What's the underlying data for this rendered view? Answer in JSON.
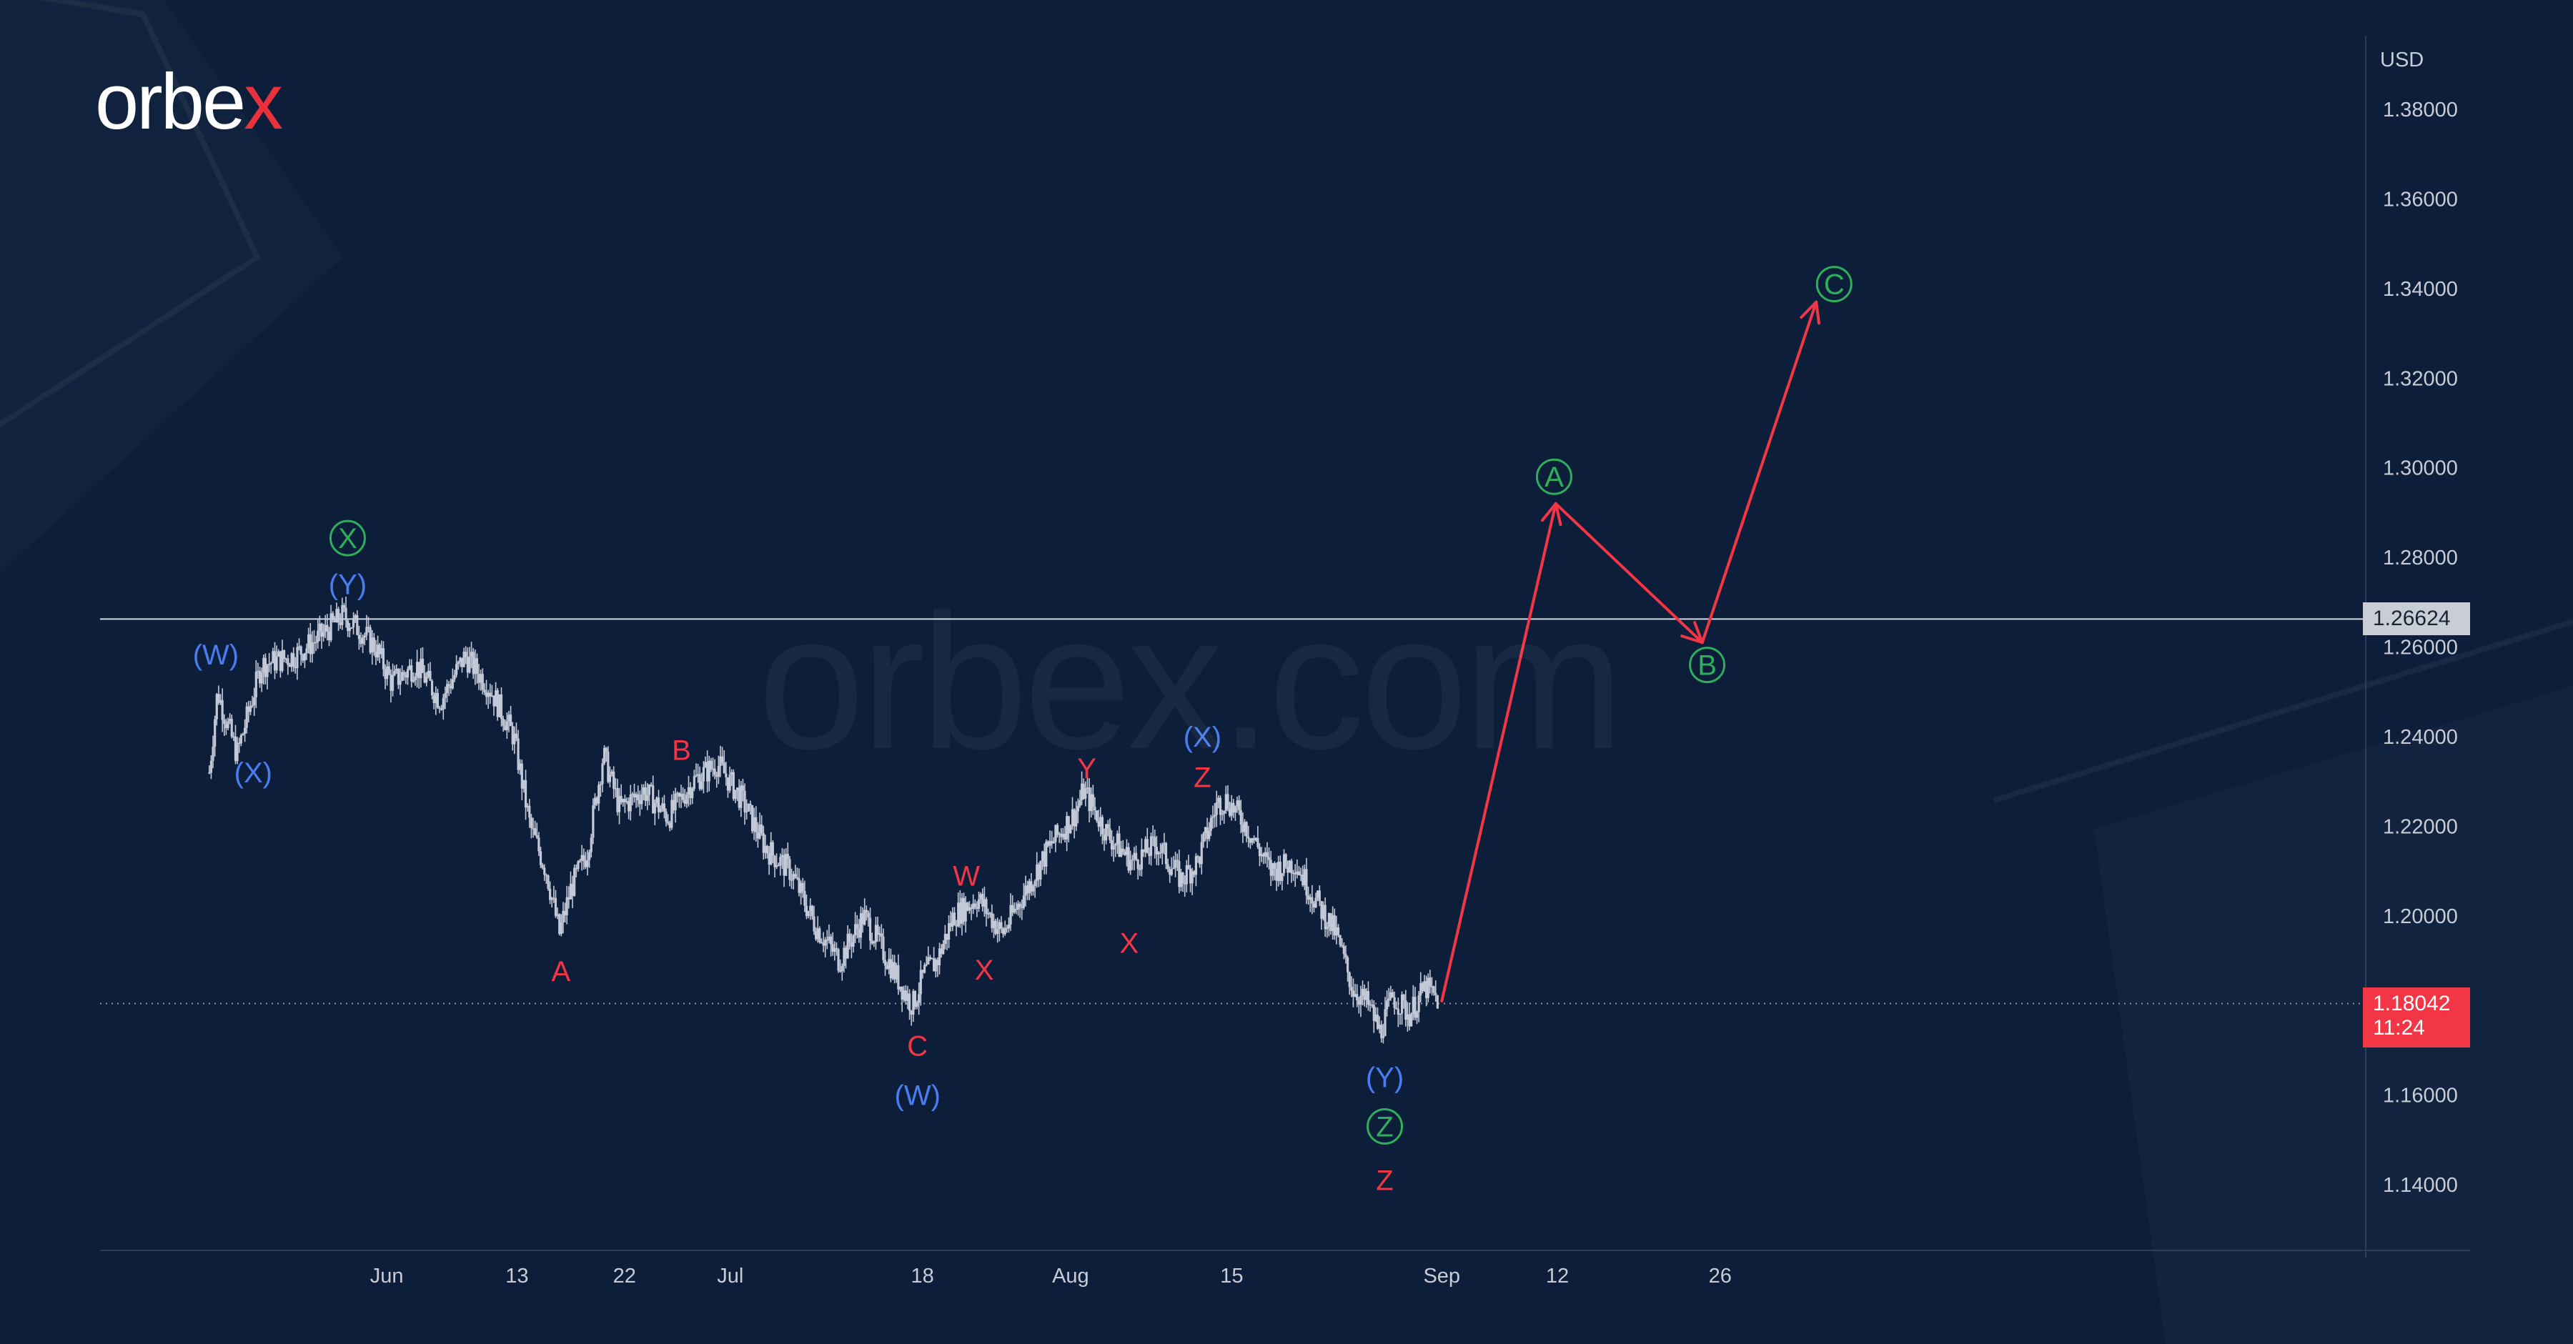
{
  "brand": {
    "logo_text_main": "orbe",
    "logo_text_accent": "x",
    "watermark": "orbex.com"
  },
  "colors": {
    "background": "#0c1e3a",
    "candle": "#c3c9d6",
    "forecast_arrow": "#f23645",
    "wave_blue": "#4a7cf0",
    "wave_red": "#f23645",
    "wave_green": "#2fae5b",
    "axis_text": "#c7ccd6",
    "level_line": "#d6d9df",
    "last_price_bg": "#f23645"
  },
  "chart_data": {
    "type": "line",
    "title": "",
    "currency_label": "USD",
    "ylim": [
      1.126,
      1.392
    ],
    "y_ticks": [
      "1.38000",
      "1.36000",
      "1.34000",
      "1.32000",
      "1.30000",
      "1.28000",
      "1.26000",
      "1.24000",
      "1.22000",
      "1.20000",
      "1.18000",
      "1.16000",
      "1.14000"
    ],
    "x_ticks": [
      {
        "label": "Jun",
        "t": 2.2
      },
      {
        "label": "13",
        "t": 10.2
      },
      {
        "label": "22",
        "t": 16.8
      },
      {
        "label": "Jul",
        "t": 23.3
      },
      {
        "label": "18",
        "t": 35.1
      },
      {
        "label": "Aug",
        "t": 44.2
      },
      {
        "label": "15",
        "t": 54.1
      },
      {
        "label": "Sep",
        "t": 67.0
      },
      {
        "label": "12",
        "t": 74.1
      },
      {
        "label": "26",
        "t": 84.1
      }
    ],
    "price_path": [
      [
        -8.7,
        1.232
      ],
      [
        -8.2,
        1.25
      ],
      [
        -7.0,
        1.236
      ],
      [
        -5.5,
        1.256
      ],
      [
        -3.5,
        1.258
      ],
      [
        -2.0,
        1.262
      ],
      [
        -0.5,
        1.267
      ],
      [
        0.5,
        1.264
      ],
      [
        1.5,
        1.26
      ],
      [
        2.5,
        1.252
      ],
      [
        4.0,
        1.256
      ],
      [
        5.5,
        1.248
      ],
      [
        7.0,
        1.258
      ],
      [
        8.5,
        1.251
      ],
      [
        10.0,
        1.24
      ],
      [
        11.0,
        1.22
      ],
      [
        12.0,
        1.21
      ],
      [
        12.8,
        1.196
      ],
      [
        13.5,
        1.206
      ],
      [
        14.5,
        1.214
      ],
      [
        15.5,
        1.236
      ],
      [
        16.5,
        1.224
      ],
      [
        18.0,
        1.228
      ],
      [
        19.5,
        1.222
      ],
      [
        21.0,
        1.23
      ],
      [
        22.5,
        1.234
      ],
      [
        24.0,
        1.226
      ],
      [
        25.5,
        1.215
      ],
      [
        27.0,
        1.21
      ],
      [
        28.5,
        1.198
      ],
      [
        30.0,
        1.19
      ],
      [
        31.5,
        1.2
      ],
      [
        33.0,
        1.19
      ],
      [
        34.0,
        1.183
      ],
      [
        34.5,
        1.18
      ],
      [
        35.2,
        1.187
      ],
      [
        36.0,
        1.19
      ],
      [
        37.0,
        1.2
      ],
      [
        38.5,
        1.204
      ],
      [
        40.0,
        1.196
      ],
      [
        41.5,
        1.206
      ],
      [
        43.0,
        1.216
      ],
      [
        44.5,
        1.223
      ],
      [
        45.0,
        1.228
      ],
      [
        46.5,
        1.218
      ],
      [
        48.0,
        1.212
      ],
      [
        49.5,
        1.216
      ],
      [
        51.0,
        1.208
      ],
      [
        52.0,
        1.212
      ],
      [
        53.2,
        1.225
      ],
      [
        53.8,
        1.226
      ],
      [
        55.0,
        1.22
      ],
      [
        56.5,
        1.21
      ],
      [
        58.0,
        1.212
      ],
      [
        59.0,
        1.205
      ],
      [
        60.5,
        1.196
      ],
      [
        61.5,
        1.184
      ],
      [
        62.5,
        1.18
      ],
      [
        63.2,
        1.174
      ],
      [
        64.0,
        1.182
      ],
      [
        65.0,
        1.178
      ],
      [
        66.0,
        1.184
      ],
      [
        66.8,
        1.181
      ]
    ],
    "forecast_path": [
      [
        67.0,
        1.181
      ],
      [
        74.0,
        1.292
      ],
      [
        83.0,
        1.261
      ],
      [
        90.0,
        1.337
      ]
    ],
    "horizontal_level": 1.26624,
    "horizontal_level_label": "1.26624",
    "last_price": 1.18042,
    "last_price_label": "1.18042",
    "countdown": "11:24",
    "wave_labels": [
      {
        "text": "(W)",
        "t": -8.3,
        "y": 1.2583,
        "color": "blue",
        "circled": false
      },
      {
        "text": "(X)",
        "t": -6.0,
        "y": 1.232,
        "color": "blue",
        "circled": false
      },
      {
        "text": "(Y)",
        "t": -0.2,
        "y": 1.274,
        "color": "blue",
        "circled": false
      },
      {
        "text": "X",
        "t": -0.2,
        "y": 1.2843,
        "color": "green",
        "circled": true
      },
      {
        "text": "A",
        "t": 12.9,
        "y": 1.1877,
        "color": "red",
        "circled": false
      },
      {
        "text": "B",
        "t": 20.3,
        "y": 1.237,
        "color": "red",
        "circled": false
      },
      {
        "text": "C",
        "t": 34.8,
        "y": 1.171,
        "color": "red",
        "circled": false
      },
      {
        "text": "(W)",
        "t": 34.8,
        "y": 1.16,
        "color": "blue",
        "circled": false
      },
      {
        "text": "W",
        "t": 37.8,
        "y": 1.209,
        "color": "red",
        "circled": false
      },
      {
        "text": "X",
        "t": 38.9,
        "y": 1.188,
        "color": "red",
        "circled": false
      },
      {
        "text": "Y",
        "t": 45.2,
        "y": 1.233,
        "color": "red",
        "circled": false
      },
      {
        "text": "X",
        "t": 47.8,
        "y": 1.194,
        "color": "red",
        "circled": false
      },
      {
        "text": "(X)",
        "t": 52.3,
        "y": 1.24,
        "color": "blue",
        "circled": false
      },
      {
        "text": "Z",
        "t": 52.3,
        "y": 1.231,
        "color": "red",
        "circled": false
      },
      {
        "text": "(Y)",
        "t": 63.5,
        "y": 1.164,
        "color": "blue",
        "circled": false
      },
      {
        "text": "Z",
        "t": 63.5,
        "y": 1.153,
        "color": "green",
        "circled": true
      },
      {
        "text": "Z",
        "t": 63.5,
        "y": 1.141,
        "color": "red",
        "circled": false
      },
      {
        "text": "A",
        "t": 73.9,
        "y": 1.298,
        "color": "green",
        "circled": true
      },
      {
        "text": "B",
        "t": 83.3,
        "y": 1.256,
        "color": "green",
        "circled": true
      },
      {
        "text": "C",
        "t": 91.1,
        "y": 1.341,
        "color": "green",
        "circled": true
      }
    ]
  }
}
